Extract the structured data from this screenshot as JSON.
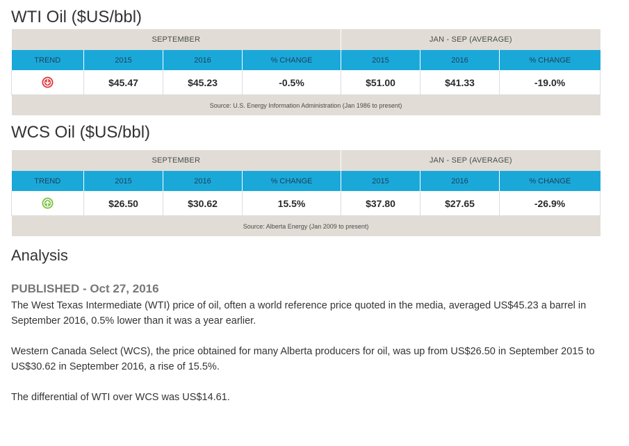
{
  "wti": {
    "title": "WTI Oil ($US/bbl)",
    "group_left": "SEPTEMBER",
    "group_right": "JAN - SEP (AVERAGE)",
    "headers": [
      "TREND",
      "2015",
      "2016",
      "% CHANGE",
      "2015",
      "2016",
      "% CHANGE"
    ],
    "trend_icon": "down-arrow-circle-icon",
    "trend_color": "#e0393e",
    "values": [
      "$45.47",
      "$45.23",
      "-0.5%",
      "$51.00",
      "$41.33",
      "-19.0%"
    ],
    "source": "Source: U.S. Energy Information Administration (Jan 1986 to present)"
  },
  "wcs": {
    "title": "WCS Oil ($US/bbl)",
    "group_left": "SEPTEMBER",
    "group_right": "JAN - SEP (AVERAGE)",
    "headers": [
      "TREND",
      "2015",
      "2016",
      "% CHANGE",
      "2015",
      "2016",
      "% CHANGE"
    ],
    "trend_icon": "up-arrow-circle-icon",
    "trend_color": "#7cc242",
    "values": [
      "$26.50",
      "$30.62",
      "15.5%",
      "$37.80",
      "$27.65",
      "-26.9%"
    ],
    "source": "Source: Alberta Energy (Jan 2009 to present)"
  },
  "analysis": {
    "heading": "Analysis",
    "published": "PUBLISHED - Oct 27, 2016",
    "paragraphs": [
      "The West Texas Intermediate (WTI) price of oil, often a world reference price quoted in the media, averaged US$45.23 a barrel in September 2016, 0.5% lower than it was a year earlier.",
      "Western Canada Select (WCS), the price obtained for many Alberta producers for oil, was up from US$26.50 in September 2015 to US$30.62 in September 2016, a rise of 15.5%.",
      "The differential of WTI over WCS was US$14.61."
    ]
  },
  "colors": {
    "header_band": "#1aa8d9",
    "group_band": "#e1ddd6"
  }
}
